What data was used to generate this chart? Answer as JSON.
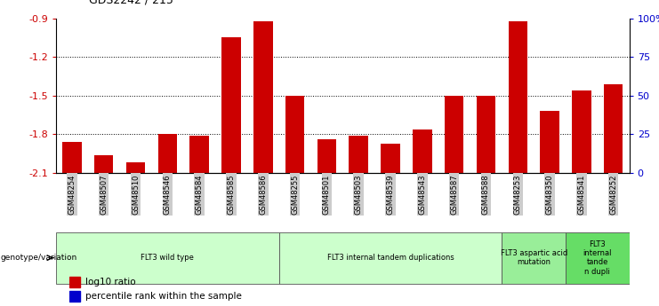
{
  "title": "GDS2242 / 215",
  "samples": [
    "GSM48254",
    "GSM48507",
    "GSM48510",
    "GSM48546",
    "GSM48584",
    "GSM48585",
    "GSM48586",
    "GSM48255",
    "GSM48501",
    "GSM48503",
    "GSM48539",
    "GSM48543",
    "GSM48587",
    "GSM48588",
    "GSM48253",
    "GSM48350",
    "GSM48541",
    "GSM48252"
  ],
  "log10_ratio": [
    -1.86,
    -1.96,
    -2.02,
    -1.8,
    -1.81,
    -1.05,
    -0.92,
    -1.5,
    -1.84,
    -1.81,
    -1.87,
    -1.76,
    -1.5,
    -1.5,
    -0.92,
    -1.62,
    -1.46,
    -1.41
  ],
  "percentile_rank": [
    3,
    3,
    2,
    4,
    4,
    5,
    5,
    5,
    3,
    3,
    2,
    3,
    3,
    4,
    5,
    3,
    3,
    5
  ],
  "groups": [
    {
      "label": "FLT3 wild type",
      "start": 0,
      "end": 6,
      "color": "#ccffcc"
    },
    {
      "label": "FLT3 internal tandem duplications",
      "start": 7,
      "end": 13,
      "color": "#ccffcc"
    },
    {
      "label": "FLT3 aspartic acid\nmutation",
      "start": 14,
      "end": 15,
      "color": "#99ee99"
    },
    {
      "label": "FLT3\ninternal\ntande\nn dupli",
      "start": 16,
      "end": 17,
      "color": "#66dd66"
    }
  ],
  "ylim_left": [
    -2.1,
    -0.9
  ],
  "ylim_right": [
    0,
    100
  ],
  "yticks_left": [
    -2.1,
    -1.8,
    -1.5,
    -1.2,
    -0.9
  ],
  "yticks_right": [
    0,
    25,
    50,
    75,
    100
  ],
  "ytick_labels_right": [
    "0",
    "25",
    "50",
    "75",
    "100%"
  ],
  "bar_color_red": "#cc0000",
  "bar_color_blue": "#0000cc",
  "bar_width": 0.6,
  "left_axis_color": "#cc0000",
  "right_axis_color": "#0000cc",
  "genotype_label": "genotype/variation",
  "legend_red": "log10 ratio",
  "legend_blue": "percentile rank within the sample",
  "background_color": "#ffffff",
  "tick_label_bg": "#cccccc",
  "gap_color": "#ffffff"
}
